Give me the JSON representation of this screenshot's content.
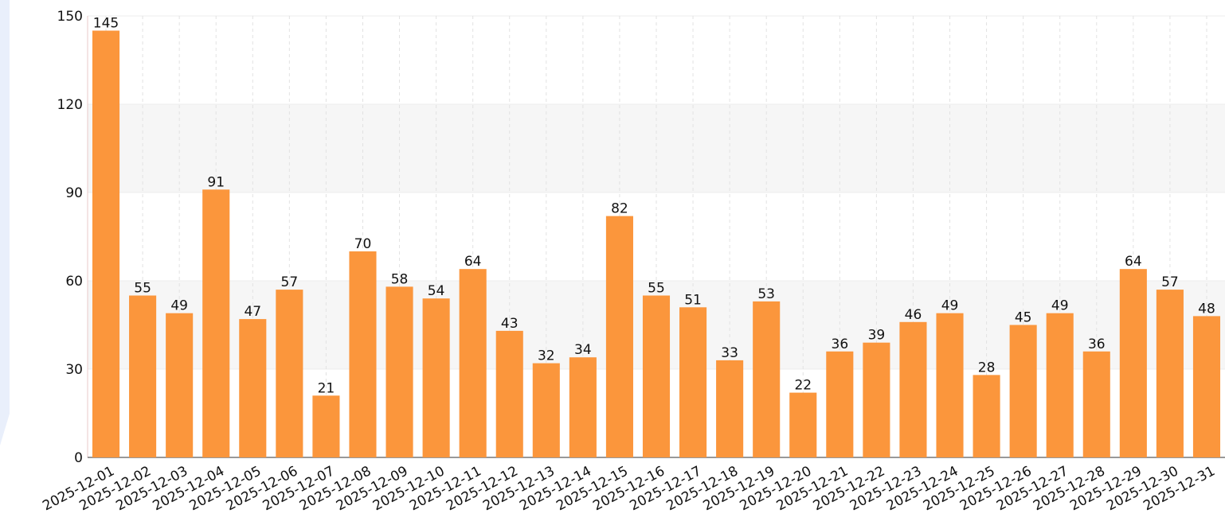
{
  "chart_data": {
    "type": "bar",
    "categories": [
      "2025-12-01",
      "2025-12-02",
      "2025-12-03",
      "2025-12-04",
      "2025-12-05",
      "2025-12-06",
      "2025-12-07",
      "2025-12-08",
      "2025-12-09",
      "2025-12-10",
      "2025-12-11",
      "2025-12-12",
      "2025-12-13",
      "2025-12-14",
      "2025-12-15",
      "2025-12-16",
      "2025-12-17",
      "2025-12-18",
      "2025-12-19",
      "2025-12-20",
      "2025-12-21",
      "2025-12-22",
      "2025-12-23",
      "2025-12-24",
      "2025-12-25",
      "2025-12-26",
      "2025-12-27",
      "2025-12-28",
      "2025-12-29",
      "2025-12-30",
      "2025-12-31"
    ],
    "values": [
      145,
      55,
      49,
      91,
      47,
      57,
      21,
      70,
      58,
      54,
      64,
      43,
      32,
      34,
      82,
      55,
      51,
      33,
      53,
      22,
      36,
      39,
      46,
      49,
      28,
      45,
      49,
      36,
      64,
      57,
      48
    ],
    "color": "#fb963c",
    "ylim": [
      0,
      150
    ],
    "yticks": [
      0,
      30,
      60,
      90,
      120,
      150
    ],
    "grid": true
  }
}
